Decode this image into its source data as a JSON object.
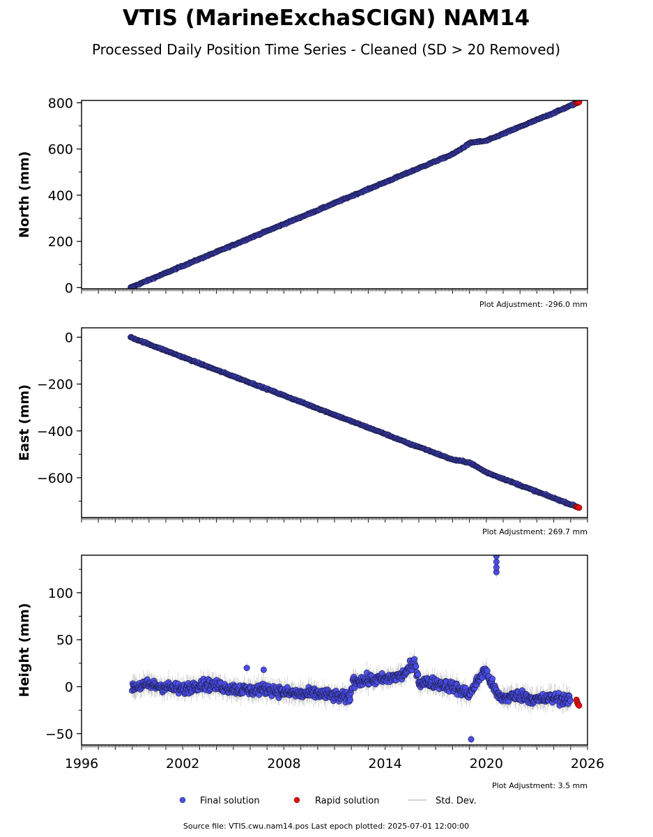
{
  "title": "VTIS (MarineExchaSCIGN) NAM14",
  "subtitle": "Processed Daily Position Time Series - Cleaned (SD > 20 Removed)",
  "colors": {
    "final": "#4a4de8",
    "rapid": "#e01010",
    "stddev": "#c8c8c8",
    "edge": "#1a1a40"
  },
  "chart_data": [
    {
      "type": "scatter",
      "name": "north",
      "ylabel": "North (mm)",
      "xlim": [
        1996,
        2026
      ],
      "ylim": [
        -5,
        810
      ],
      "yticks": [
        0,
        200,
        400,
        600,
        800
      ],
      "adjustment": "Plot Adjustment: -296.0 mm",
      "start": [
        1998.9,
        0
      ],
      "end": [
        2025.5,
        803
      ],
      "final_x": [
        1998.9,
        2000,
        2002,
        2004,
        2006,
        2008,
        2010,
        2012,
        2014,
        2016,
        2018,
        2019.1,
        2020,
        2022,
        2024,
        2025.3
      ],
      "final_y": [
        0,
        33,
        94,
        154,
        215,
        275,
        335,
        396,
        456,
        517,
        577,
        628,
        635,
        696,
        756,
        797
      ],
      "rapid_x": [
        2025.35,
        2025.4,
        2025.45,
        2025.5
      ],
      "rapid_y": [
        799,
        800,
        801,
        803
      ]
    },
    {
      "type": "scatter",
      "name": "east",
      "ylabel": "East (mm)",
      "xlim": [
        1996,
        2026
      ],
      "ylim": [
        -770,
        40
      ],
      "yticks": [
        0,
        -200,
        -400,
        -600
      ],
      "ytick_labels": [
        "0",
        "−200",
        "−400",
        "−600"
      ],
      "adjustment": "Plot Adjustment: 269.7 mm",
      "start": [
        1998.9,
        0
      ],
      "end": [
        2025.5,
        -728
      ],
      "final_x": [
        1998.9,
        2000,
        2002,
        2004,
        2006,
        2008,
        2010,
        2012,
        2014,
        2015.6,
        2016,
        2018,
        2019,
        2020,
        2022,
        2024,
        2025.3
      ],
      "final_y": [
        0,
        -30,
        -85,
        -140,
        -194,
        -249,
        -304,
        -359,
        -413,
        -460,
        -468,
        -523,
        -535,
        -577,
        -632,
        -687,
        -722
      ],
      "rapid_x": [
        2025.35,
        2025.4,
        2025.45,
        2025.5
      ],
      "rapid_y": [
        -724,
        -725,
        -727,
        -728
      ]
    },
    {
      "type": "scatter",
      "name": "height",
      "ylabel": "Height (mm)",
      "xlim": [
        1996,
        2026
      ],
      "ylim": [
        -62,
        140
      ],
      "yticks": [
        -50,
        0,
        50,
        100
      ],
      "ytick_labels": [
        "−50",
        "0",
        "50",
        "100"
      ],
      "xticks": [
        1996,
        2002,
        2008,
        2014,
        2020,
        2026
      ],
      "adjustment": "Plot Adjustment: 3.5 mm",
      "final_x": [
        1999,
        2000,
        2001,
        2002,
        2003,
        2004,
        2005,
        2006,
        2007,
        2008,
        2009,
        2010,
        2011,
        2011.9,
        2012.1,
        2013,
        2014,
        2015,
        2015.8,
        2016,
        2017,
        2018,
        2019,
        2019.9,
        2020.2,
        2020.5,
        2020.7,
        2021,
        2022,
        2023,
        2024,
        2025
      ],
      "final_y": [
        0,
        2,
        0,
        -3,
        3,
        1,
        -2,
        -4,
        -2,
        -6,
        -8,
        -7,
        -10,
        -12,
        6,
        7,
        8,
        12,
        25,
        5,
        4,
        0,
        -8,
        18,
        8,
        -3,
        -10,
        -12,
        -9,
        -14,
        -12,
        -14
      ],
      "outliers_x": [
        2005.8,
        2006.8,
        2019.1,
        2020.6,
        2020.6,
        2020.6,
        2020.6
      ],
      "outliers_y": [
        20,
        18,
        -56,
        122,
        127,
        133,
        139
      ],
      "rapid_x": [
        2025.35,
        2025.4,
        2025.45,
        2025.5
      ],
      "rapid_y": [
        -14,
        -17,
        -19,
        -20
      ]
    }
  ],
  "legend": {
    "final_label": "Final solution",
    "rapid_label": "Rapid solution",
    "stddev_label": "Std. Dev.",
    "placement": "bottom-center"
  },
  "footer": "Source file: VTIS.cwu.nam14.pos  Last epoch plotted: 2025-07-01 12:00:00"
}
